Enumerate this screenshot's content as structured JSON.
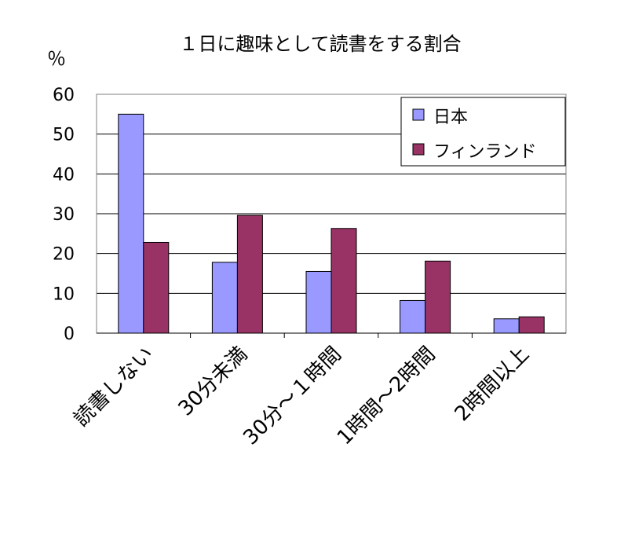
{
  "chart_data": {
    "type": "bar",
    "title": "１日に趣味として読書をする割合",
    "ylabel": "％",
    "xlabel": "",
    "ylim": [
      0,
      60
    ],
    "yticks": [
      0,
      10,
      20,
      30,
      40,
      50,
      60
    ],
    "grid": true,
    "legend_position": "top-right",
    "categories": [
      "読書しない",
      "30分未満",
      "30分～１時間",
      "1時間～2時間",
      "2時間以上"
    ],
    "series": [
      {
        "name": "日本",
        "color": "#9999ff",
        "values": [
          55,
          17.8,
          15.5,
          8.2,
          3.6
        ]
      },
      {
        "name": "フィンランド",
        "color": "#993366",
        "values": [
          22.8,
          29.6,
          26.3,
          18.1,
          4.1
        ]
      }
    ]
  }
}
